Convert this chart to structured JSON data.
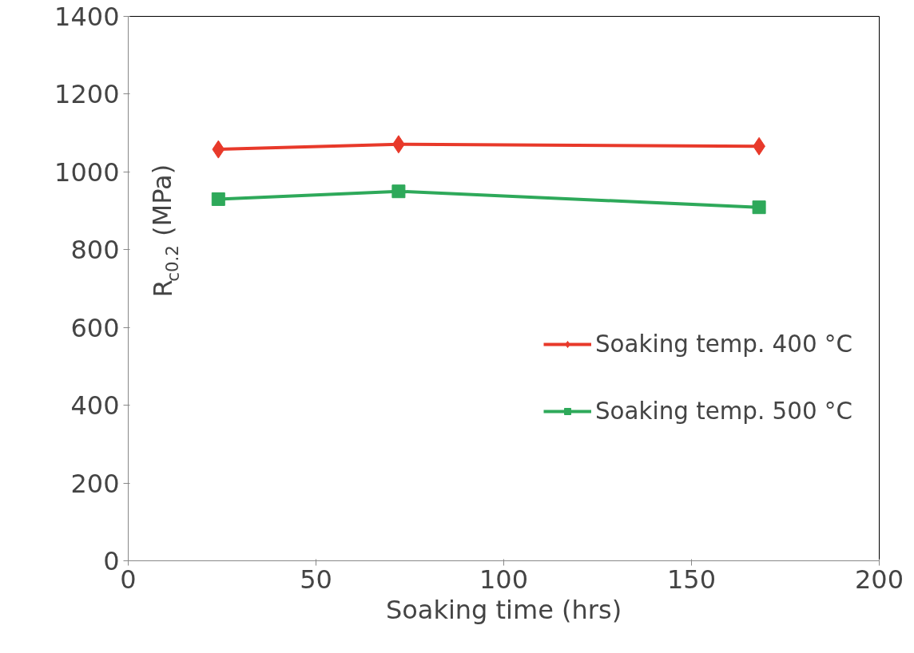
{
  "chart_data": {
    "type": "line",
    "xlabel": "Soaking time (hrs)",
    "ylabel": "R$_{c0.2}$ (MPa)",
    "x": [
      24,
      72,
      168
    ],
    "series": [
      {
        "name": "Soaking temp. 400 °C",
        "color": "#e8392a",
        "values": [
          1058,
          1071,
          1066
        ],
        "marker": "diamond"
      },
      {
        "name": "Soaking temp. 500 °C",
        "color": "#2ea95a",
        "values": [
          930,
          950,
          909
        ],
        "marker": "square"
      }
    ],
    "xlim": [
      0,
      200
    ],
    "xticks": [
      0,
      50,
      100,
      150,
      200
    ],
    "ylim": [
      0,
      1400
    ],
    "yticks": [
      0,
      200,
      400,
      600,
      800,
      1000,
      1200,
      1400
    ],
    "grid": false,
    "legend": "right",
    "line_style": "solid"
  }
}
